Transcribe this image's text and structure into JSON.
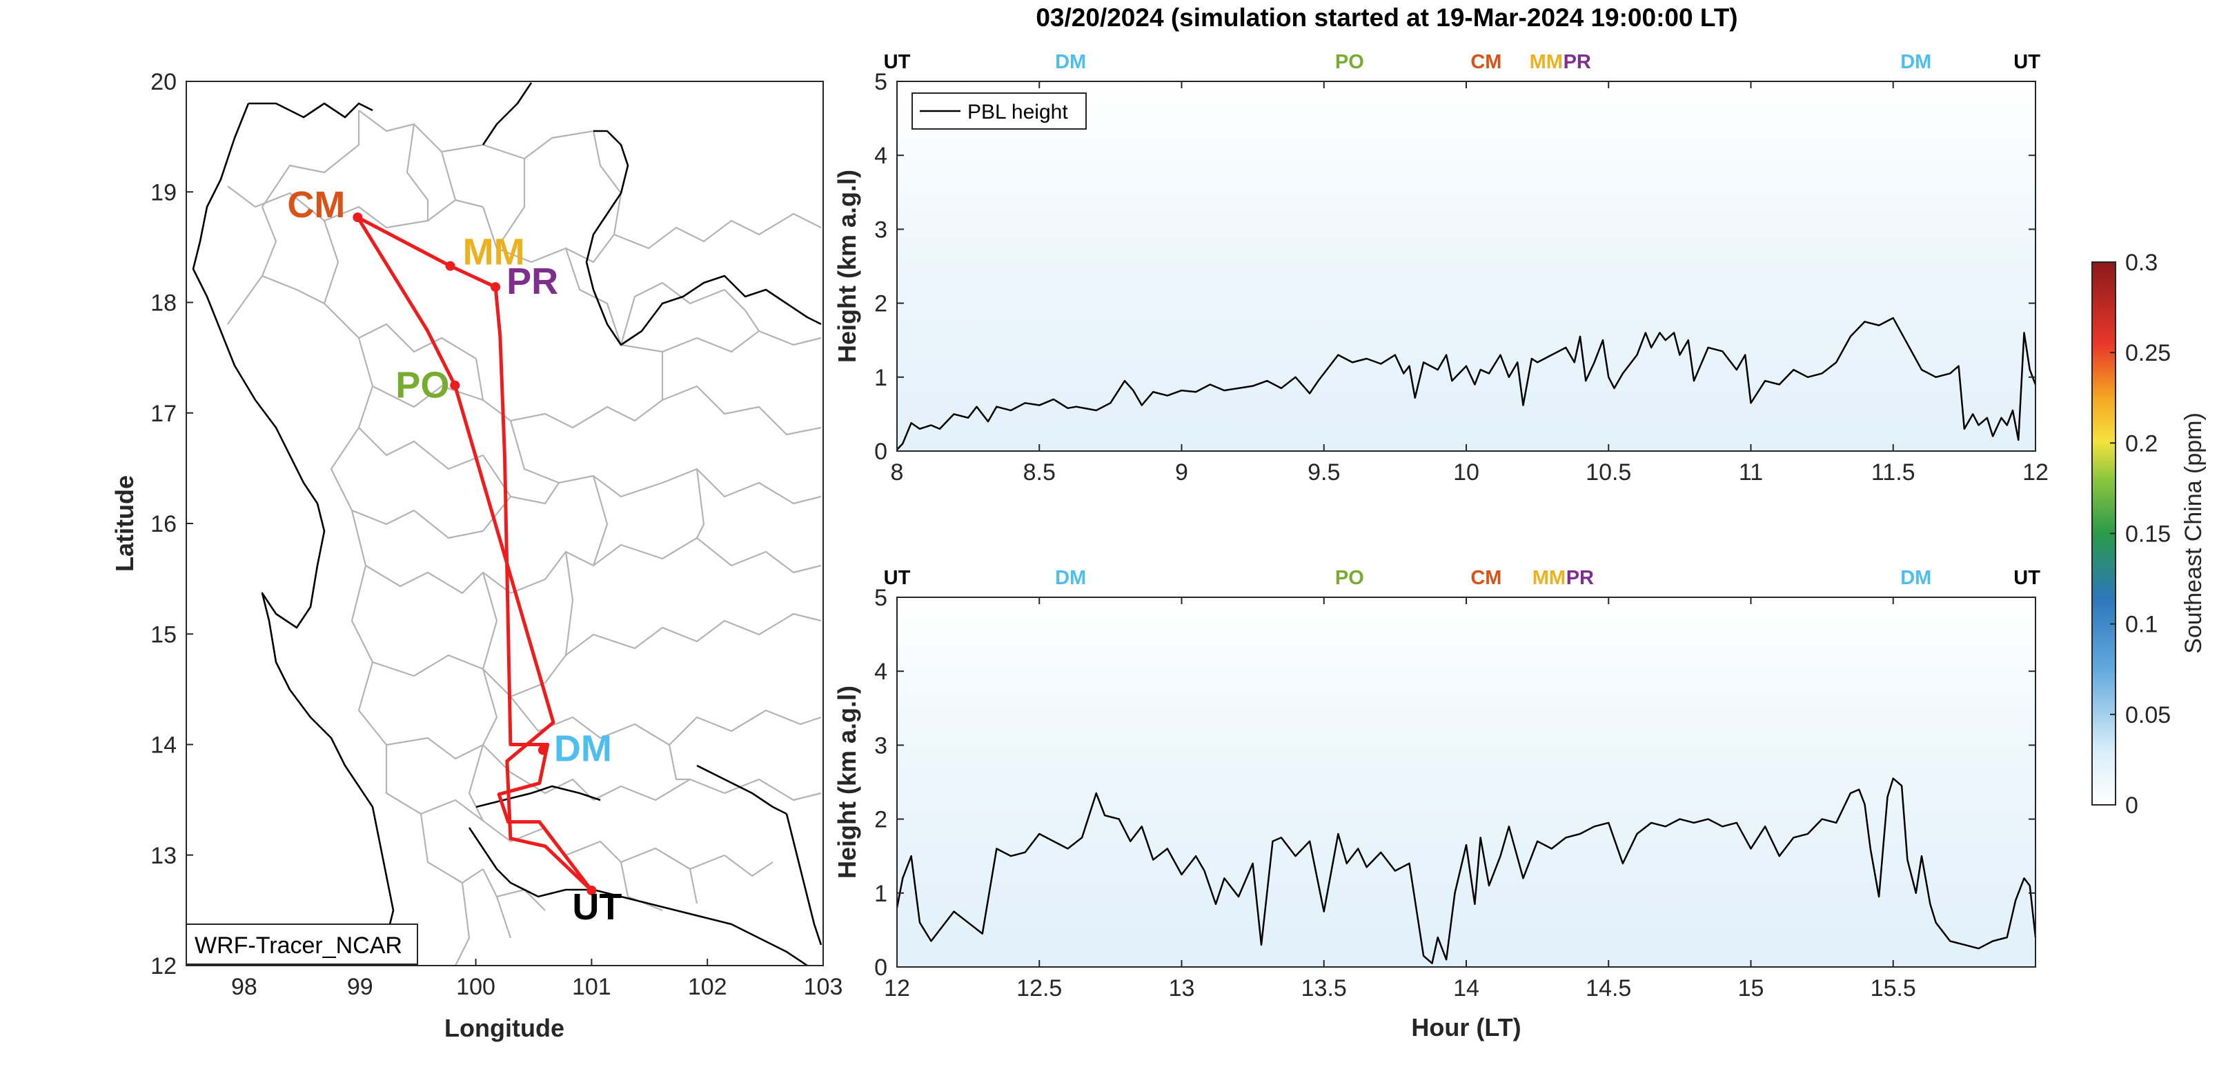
{
  "title": "03/20/2024 (simulation started at 19-Mar-2024 19:00:00 LT)",
  "colors": {
    "route": "#ee1c1c",
    "UT": "#000000",
    "DM": "#4dbeee",
    "PO": "#77ac30",
    "CM": "#d95319",
    "MM": "#edb120",
    "PR": "#7e2f8e",
    "pbl_line": "#000000",
    "boundary": "#b3b3b3"
  },
  "chart_data": [
    {
      "type": "map",
      "id": "map",
      "xlabel": "Longitude",
      "ylabel": "Latitude",
      "xlim": [
        97.5,
        103
      ],
      "ylim": [
        12,
        20
      ],
      "xticks": [
        98,
        99,
        100,
        101,
        102,
        103
      ],
      "yticks": [
        12,
        13,
        14,
        15,
        16,
        17,
        18,
        19,
        20
      ],
      "model_label": "WRF-Tracer_NCAR",
      "stations": [
        {
          "name": "CM",
          "lon": 98.98,
          "lat": 18.77
        },
        {
          "name": "MM",
          "lon": 99.78,
          "lat": 18.33
        },
        {
          "name": "PR",
          "lon": 100.17,
          "lat": 18.14
        },
        {
          "name": "PO",
          "lon": 99.82,
          "lat": 17.25
        },
        {
          "name": "DM",
          "lon": 100.58,
          "lat": 13.95
        },
        {
          "name": "UT",
          "lon": 101.0,
          "lat": 12.68
        }
      ],
      "route": [
        [
          101.0,
          12.68
        ],
        [
          100.6,
          13.08
        ],
        [
          100.3,
          13.15
        ],
        [
          100.27,
          13.85
        ],
        [
          100.67,
          14.2
        ],
        [
          99.82,
          17.25
        ],
        [
          99.58,
          17.75
        ],
        [
          98.98,
          18.77
        ],
        [
          99.78,
          18.33
        ],
        [
          100.17,
          18.14
        ],
        [
          100.21,
          17.7
        ],
        [
          100.25,
          16.6
        ],
        [
          100.3,
          14.0
        ],
        [
          100.62,
          14.0
        ],
        [
          100.55,
          13.65
        ],
        [
          100.2,
          13.55
        ],
        [
          100.28,
          13.3
        ],
        [
          100.55,
          13.3
        ],
        [
          101.0,
          12.68
        ]
      ]
    },
    {
      "type": "line",
      "id": "top",
      "ylabel": "Height (km a.g.l)",
      "xlim": [
        8,
        12
      ],
      "ylim": [
        0,
        5
      ],
      "xticks": [
        8,
        8.5,
        9,
        9.5,
        10,
        10.5,
        11,
        11.5,
        12
      ],
      "xtick_labels": [
        "8",
        "8.5",
        "9",
        "9.5",
        "10",
        "10.5",
        "11",
        "11.5",
        "12"
      ],
      "yticks": [
        0,
        1,
        2,
        3,
        4,
        5
      ],
      "legend": "PBL height",
      "station_markers": [
        {
          "name": "UT",
          "x": 8.0
        },
        {
          "name": "DM",
          "x": 8.61
        },
        {
          "name": "PO",
          "x": 9.59
        },
        {
          "name": "CM",
          "x": 10.07
        },
        {
          "name": "MM",
          "x": 10.3
        },
        {
          "name": "PR",
          "x": 10.38
        },
        {
          "name": "DM",
          "x": 11.58
        },
        {
          "name": "UT",
          "x": 11.97
        }
      ],
      "series": [
        {
          "x": [
            8.0,
            8.02,
            8.05,
            8.08,
            8.12,
            8.15,
            8.2,
            8.25,
            8.28,
            8.32,
            8.35,
            8.4,
            8.45,
            8.5,
            8.55,
            8.6,
            8.63,
            8.7,
            8.75,
            8.8,
            8.83,
            8.86,
            8.9,
            8.95,
            9.0,
            9.05,
            9.1,
            9.15,
            9.2,
            9.25,
            9.3,
            9.35,
            9.4,
            9.45,
            9.48,
            9.52,
            9.55,
            9.6,
            9.65,
            9.7,
            9.75,
            9.78,
            9.8,
            9.82,
            9.85,
            9.9,
            9.93,
            9.95,
            10.0,
            10.03,
            10.05,
            10.08,
            10.12,
            10.15,
            10.18,
            10.2,
            10.23,
            10.25,
            10.3,
            10.35,
            10.38,
            10.4,
            10.42,
            10.45,
            10.48,
            10.5,
            10.52,
            10.55,
            10.6,
            10.63,
            10.65,
            10.68,
            10.7,
            10.73,
            10.75,
            10.78,
            10.8,
            10.85,
            10.9,
            10.95,
            10.98,
            11.0,
            11.05,
            11.1,
            11.15,
            11.2,
            11.25,
            11.3,
            11.35,
            11.4,
            11.45,
            11.5,
            11.55,
            11.6,
            11.65,
            11.7,
            11.73,
            11.75,
            11.78,
            11.8,
            11.83,
            11.85,
            11.88,
            11.9,
            11.92,
            11.94,
            11.96,
            11.98,
            12.0
          ],
          "y": [
            0.02,
            0.1,
            0.38,
            0.3,
            0.35,
            0.3,
            0.5,
            0.45,
            0.6,
            0.4,
            0.6,
            0.55,
            0.65,
            0.62,
            0.7,
            0.58,
            0.6,
            0.55,
            0.65,
            0.95,
            0.82,
            0.62,
            0.8,
            0.75,
            0.82,
            0.8,
            0.9,
            0.82,
            0.85,
            0.88,
            0.95,
            0.85,
            1.0,
            0.78,
            0.95,
            1.15,
            1.3,
            1.2,
            1.25,
            1.18,
            1.3,
            1.05,
            1.15,
            0.72,
            1.2,
            1.1,
            1.3,
            0.95,
            1.15,
            0.9,
            1.1,
            1.05,
            1.3,
            1.0,
            1.2,
            0.62,
            1.25,
            1.2,
            1.3,
            1.4,
            1.2,
            1.55,
            0.95,
            1.2,
            1.5,
            1.0,
            0.85,
            1.05,
            1.3,
            1.6,
            1.4,
            1.6,
            1.5,
            1.6,
            1.3,
            1.5,
            0.95,
            1.4,
            1.35,
            1.1,
            1.3,
            0.65,
            0.95,
            0.9,
            1.1,
            1.0,
            1.05,
            1.2,
            1.55,
            1.75,
            1.7,
            1.8,
            1.45,
            1.1,
            1.0,
            1.05,
            1.15,
            0.3,
            0.5,
            0.35,
            0.45,
            0.2,
            0.45,
            0.35,
            0.55,
            0.15,
            1.6,
            1.1,
            0.9
          ]
        }
      ]
    },
    {
      "type": "line",
      "id": "bottom",
      "xlabel": "Hour (LT)",
      "ylabel": "Height (km a.g.l)",
      "xlim": [
        12,
        16
      ],
      "ylim": [
        0,
        5
      ],
      "xticks": [
        12,
        12.5,
        13,
        13.5,
        14,
        14.5,
        15,
        15.5
      ],
      "xtick_labels": [
        "12",
        "12.5",
        "13",
        "13.5",
        "14",
        "14.5",
        "15",
        "15.5"
      ],
      "yticks": [
        0,
        1,
        2,
        3,
        4,
        5
      ],
      "station_markers": [
        {
          "name": "UT",
          "x": 12.0
        },
        {
          "name": "DM",
          "x": 12.61
        },
        {
          "name": "PO",
          "x": 13.59
        },
        {
          "name": "CM",
          "x": 14.07
        },
        {
          "name": "MM",
          "x": 14.31
        },
        {
          "name": "PR",
          "x": 14.39
        },
        {
          "name": "DM",
          "x": 15.58
        },
        {
          "name": "UT",
          "x": 15.97
        }
      ],
      "series": [
        {
          "x": [
            12.0,
            12.02,
            12.05,
            12.08,
            12.12,
            12.15,
            12.2,
            12.25,
            12.3,
            12.35,
            12.4,
            12.45,
            12.5,
            12.55,
            12.6,
            12.65,
            12.7,
            12.73,
            12.78,
            12.82,
            12.86,
            12.9,
            12.95,
            13.0,
            13.05,
            13.08,
            13.12,
            13.15,
            13.2,
            13.25,
            13.28,
            13.32,
            13.35,
            13.4,
            13.45,
            13.5,
            13.55,
            13.58,
            13.62,
            13.65,
            13.7,
            13.75,
            13.8,
            13.85,
            13.88,
            13.9,
            13.93,
            13.96,
            14.0,
            14.03,
            14.05,
            14.08,
            14.12,
            14.15,
            14.2,
            14.25,
            14.3,
            14.35,
            14.4,
            14.45,
            14.5,
            14.55,
            14.6,
            14.65,
            14.7,
            14.75,
            14.8,
            14.85,
            14.9,
            14.95,
            15.0,
            15.05,
            15.1,
            15.15,
            15.2,
            15.25,
            15.3,
            15.35,
            15.38,
            15.4,
            15.42,
            15.45,
            15.48,
            15.5,
            15.53,
            15.55,
            15.58,
            15.6,
            15.63,
            15.65,
            15.7,
            15.75,
            15.8,
            15.85,
            15.9,
            15.93,
            15.96,
            15.98,
            16.0
          ],
          "y": [
            0.8,
            1.2,
            1.5,
            0.6,
            0.35,
            0.5,
            0.75,
            0.6,
            0.45,
            1.6,
            1.5,
            1.55,
            1.8,
            1.7,
            1.6,
            1.75,
            2.35,
            2.05,
            2.0,
            1.7,
            1.9,
            1.45,
            1.6,
            1.25,
            1.5,
            1.3,
            0.85,
            1.2,
            0.95,
            1.4,
            0.3,
            1.7,
            1.75,
            1.5,
            1.7,
            0.75,
            1.8,
            1.4,
            1.6,
            1.35,
            1.55,
            1.3,
            1.4,
            0.15,
            0.05,
            0.4,
            0.1,
            1.0,
            1.65,
            0.85,
            1.75,
            1.1,
            1.5,
            1.9,
            1.2,
            1.7,
            1.6,
            1.75,
            1.8,
            1.9,
            1.95,
            1.4,
            1.8,
            1.95,
            1.9,
            2.0,
            1.95,
            2.0,
            1.9,
            1.95,
            1.6,
            1.9,
            1.5,
            1.75,
            1.8,
            2.0,
            1.95,
            2.35,
            2.4,
            2.2,
            1.6,
            0.95,
            2.3,
            2.55,
            2.45,
            1.45,
            1.0,
            1.5,
            0.85,
            0.6,
            0.35,
            0.3,
            0.25,
            0.35,
            0.4,
            0.9,
            1.2,
            1.1,
            0.4
          ]
        }
      ]
    },
    {
      "type": "colorbar",
      "id": "colorbar",
      "label": "Southeast China (ppm)",
      "range": [
        0,
        0.3
      ],
      "ticks": [
        0,
        0.05,
        0.1,
        0.15,
        0.2,
        0.25,
        0.3
      ],
      "tick_labels": [
        "0",
        "0.05",
        "0.1",
        "0.15",
        "0.2",
        "0.25",
        "0.3"
      ]
    }
  ]
}
